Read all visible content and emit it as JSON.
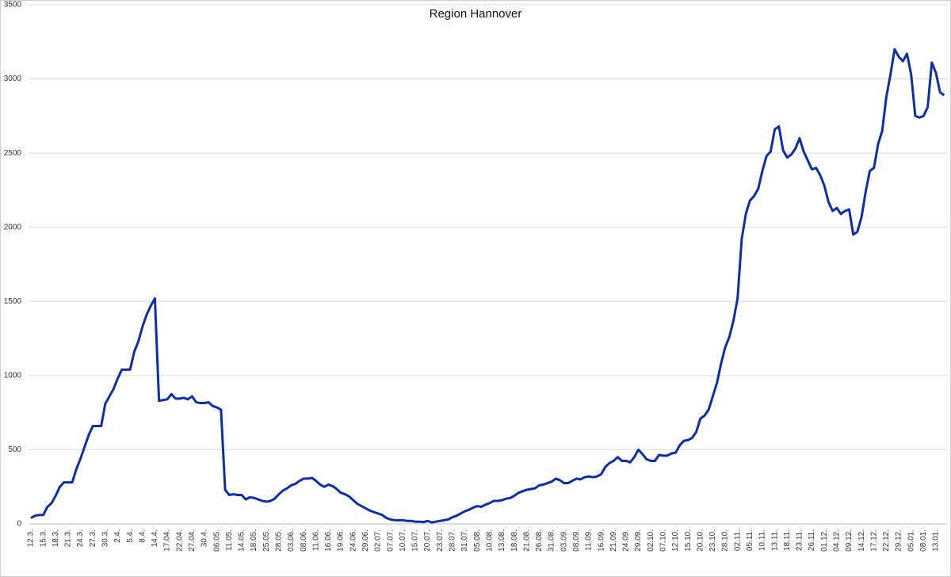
{
  "chart_data": {
    "type": "line",
    "title": "Region Hannover",
    "categories": [
      "12.3.",
      null,
      null,
      "15.3.",
      null,
      null,
      "18.3.",
      null,
      null,
      "21.3.",
      null,
      null,
      "24.3.",
      null,
      null,
      "27.3.",
      null,
      null,
      "30.3.",
      null,
      null,
      "2.4.",
      null,
      null,
      "5.4.",
      null,
      null,
      "8.4.",
      null,
      null,
      "14.4.",
      null,
      null,
      "17.04.",
      null,
      null,
      "22.04.",
      null,
      null,
      "27.04.",
      null,
      null,
      "30.4.",
      null,
      null,
      "06.05.",
      null,
      null,
      "11.05.",
      null,
      null,
      "14.05.",
      null,
      null,
      "18.05.",
      null,
      null,
      "25.05.",
      null,
      null,
      "28.05.",
      null,
      null,
      "03.06.",
      null,
      null,
      "08.06.",
      null,
      null,
      "11.06.",
      null,
      null,
      "16.06.",
      null,
      null,
      "19.06.",
      null,
      null,
      "24.06.",
      null,
      null,
      "29.06.",
      null,
      null,
      "02.07.",
      null,
      null,
      "07.07.",
      null,
      null,
      "10.07.",
      null,
      null,
      "15.07.",
      null,
      null,
      "20.07.",
      null,
      null,
      "23.07.",
      null,
      null,
      "28.07.",
      null,
      null,
      "31.07.",
      null,
      null,
      "05.08.",
      null,
      null,
      "10.08.",
      null,
      null,
      "13.08.",
      null,
      null,
      "18.08.",
      null,
      null,
      "21.08.",
      null,
      null,
      "26.08.",
      null,
      null,
      "31.08.",
      null,
      null,
      "03.09.",
      null,
      null,
      "08.09.",
      null,
      null,
      "11.09.",
      null,
      null,
      "16.09.",
      null,
      null,
      "21.09.",
      null,
      null,
      "24.09.",
      null,
      null,
      "29.09.",
      null,
      null,
      "02.10.",
      null,
      null,
      "07.10.",
      null,
      null,
      "12.10.",
      null,
      null,
      "15.10.",
      null,
      null,
      "20.10.",
      null,
      null,
      "23.10.",
      null,
      null,
      "28.10.",
      null,
      null,
      "02.11.",
      null,
      null,
      "05.11.",
      null,
      null,
      "10.11.",
      null,
      null,
      "13.11.",
      null,
      null,
      "18.11.",
      null,
      null,
      "23.11.",
      null,
      null,
      "26.11.",
      null,
      null,
      "01.12.",
      null,
      null,
      "04.12.",
      null,
      null,
      "09.12.",
      null,
      null,
      "14.12.",
      null,
      null,
      "17.12.",
      null,
      null,
      "22.12.",
      null,
      null,
      "29.12.",
      null,
      null,
      "05.01.",
      null,
      null,
      "08.01.",
      null,
      null,
      "13.01.",
      null,
      null
    ],
    "values": [
      40,
      55,
      60,
      60,
      115,
      140,
      190,
      250,
      280,
      280,
      280,
      370,
      440,
      520,
      600,
      660,
      660,
      660,
      810,
      860,
      910,
      980,
      1040,
      1040,
      1040,
      1160,
      1230,
      1330,
      1410,
      1470,
      1520,
      830,
      835,
      840,
      875,
      845,
      845,
      850,
      840,
      860,
      820,
      815,
      815,
      820,
      795,
      785,
      770,
      230,
      195,
      200,
      195,
      195,
      165,
      180,
      175,
      165,
      155,
      150,
      155,
      170,
      200,
      225,
      240,
      260,
      270,
      290,
      305,
      305,
      310,
      290,
      265,
      250,
      265,
      255,
      235,
      210,
      200,
      185,
      160,
      135,
      120,
      105,
      90,
      80,
      70,
      60,
      40,
      30,
      25,
      25,
      25,
      20,
      20,
      15,
      15,
      12,
      20,
      10,
      15,
      20,
      25,
      30,
      45,
      55,
      70,
      85,
      95,
      110,
      120,
      115,
      130,
      140,
      155,
      155,
      160,
      170,
      175,
      190,
      210,
      220,
      230,
      235,
      240,
      260,
      265,
      275,
      285,
      305,
      295,
      275,
      275,
      290,
      305,
      300,
      315,
      320,
      315,
      320,
      335,
      385,
      410,
      425,
      450,
      425,
      425,
      415,
      450,
      500,
      470,
      435,
      425,
      425,
      465,
      460,
      460,
      475,
      480,
      530,
      560,
      565,
      580,
      620,
      710,
      730,
      770,
      860,
      950,
      1080,
      1190,
      1260,
      1370,
      1520,
      1920,
      2090,
      2180,
      2210,
      2260,
      2380,
      2480,
      2510,
      2660,
      2680,
      2520,
      2470,
      2490,
      2530,
      2600,
      2510,
      2450,
      2390,
      2400,
      2350,
      2280,
      2170,
      2110,
      2130,
      2090,
      2110,
      2120,
      1950,
      1970,
      2070,
      2240,
      2380,
      2400,
      2560,
      2650,
      2880,
      3030,
      3200,
      3150,
      3120,
      3170,
      3030,
      2750,
      2740,
      2750,
      2810,
      3110,
      3040,
      2910,
      2890
    ],
    "color": "#0e2ea3",
    "ylim": [
      0,
      3500
    ],
    "yticks": [
      0,
      500,
      1000,
      1500,
      2000,
      2500,
      3000,
      3500
    ],
    "grid": true
  }
}
